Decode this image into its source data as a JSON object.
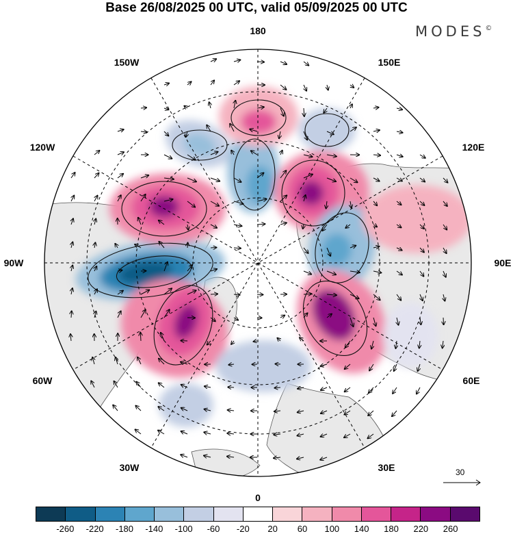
{
  "title": "Base 26/08/2025 00 UTC, valid 05/09/2025 00 UTC",
  "brand": "MODES",
  "brand_mark": "©",
  "longitude_labels": [
    "180",
    "150E",
    "120E",
    "90E",
    "60E",
    "30E",
    "0",
    "30W",
    "60W",
    "90W",
    "120W",
    "150W"
  ],
  "reference_vector": "30",
  "colorbar": {
    "colors": [
      "#0d3a55",
      "#0f5c86",
      "#2c83b4",
      "#5fa6cd",
      "#98bfdb",
      "#c3cfe4",
      "#e3e3f0",
      "#ffffff",
      "#f9d5d9",
      "#f5b2c0",
      "#f08aaa",
      "#e4569a",
      "#c52489",
      "#8b0b82",
      "#5a0a6e"
    ],
    "ticks": [
      "-260",
      "-220",
      "-180",
      "-140",
      "-100",
      "-60",
      "-20",
      "20",
      "60",
      "100",
      "140",
      "180",
      "220",
      "260"
    ]
  },
  "anomalies": [
    {
      "name": "negative-anomaly-90w",
      "value": -260
    },
    {
      "name": "positive-anomaly-120w",
      "value": 220
    },
    {
      "name": "positive-anomaly-60w",
      "value": 220
    },
    {
      "name": "negative-anomaly-150w",
      "value": -140
    },
    {
      "name": "negative-anomaly-180",
      "value": -180
    },
    {
      "name": "positive-anomaly-180",
      "value": 140
    },
    {
      "name": "negative-anomaly-150e",
      "value": -100
    },
    {
      "name": "positive-anomaly-120e",
      "value": 220
    },
    {
      "name": "negative-anomaly-90e",
      "value": -180
    },
    {
      "name": "positive-anomaly-60e",
      "value": 220
    },
    {
      "name": "negative-anomaly-0",
      "value": -100
    },
    {
      "name": "negative-anomaly-30w",
      "value": -100
    },
    {
      "name": "negative-anomaly-45e",
      "value": -60
    },
    {
      "name": "positive-anomaly-105e",
      "value": 60
    }
  ]
}
